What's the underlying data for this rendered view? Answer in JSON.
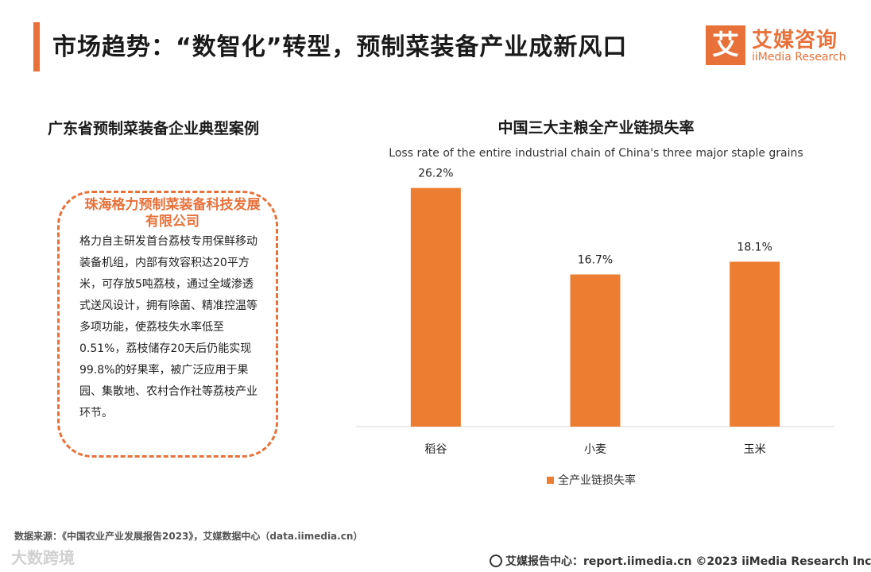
{
  "header": {
    "title": "市场趋势：“数智化”转型，预制菜装备产业成新风口",
    "logo_badge": "艾",
    "logo_cn": "艾媒咨询",
    "logo_en": "iiMedia Research"
  },
  "left_panel": {
    "title": "广东省预制菜装备企业典型案例",
    "company": "珠海格力预制菜装备科技发展有限公司",
    "body": "格力自主研发首台荔枝专用保鲜移动装备机组，内部有效容积达20平方米，可存放5吨荔枝，通过全域渗透式送风设计，拥有除菌、精准控温等多项功能，使荔枝失水率低至0.51%，荔枝储存20天后仍能实现99.8%的好果率，被广泛应用于果园、集散地、农村合作社等荔枝产业环节。"
  },
  "chart_data": {
    "type": "bar",
    "title": "中国三大主粮全产业链损失率",
    "subtitle": "Loss rate of the entire industrial chain of China's three major staple grains",
    "categories": [
      "稻谷",
      "小麦",
      "玉米"
    ],
    "series": [
      {
        "name": "全产业链损失率",
        "values": [
          26.2,
          16.7,
          18.1
        ],
        "labels": [
          "26.2%",
          "16.7%",
          "18.1%"
        ]
      }
    ],
    "ylim": [
      0,
      30
    ],
    "grid": false,
    "legend": "bottom",
    "bar_color": "#ed7d31"
  },
  "footer": {
    "source": "数据来源：《中国农业产业发展报告2023》，艾媒数据中心（data.iimedia.cn）",
    "report": "艾媒报告中心：report.iimedia.cn ©2023 iiMedia Research Inc",
    "watermark": "大数跨境"
  },
  "colors": {
    "accent": "#e8713a"
  }
}
